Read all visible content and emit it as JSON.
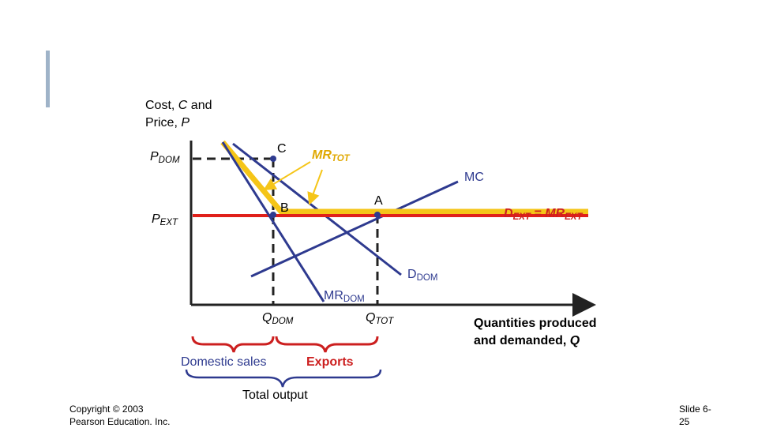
{
  "slide": {
    "copyright_line1": "Copyright © 2003",
    "copyright_line2": "Pearson Education. Inc.",
    "slide_number_line1": "Slide 6-",
    "slide_number_line2": "25"
  },
  "axes": {
    "y_label_line1_prefix": "Cost, ",
    "y_label_line1_var": "C",
    "y_label_line1_suffix": " and",
    "y_label_line2_prefix": "Price, ",
    "y_label_line2_var": "P",
    "x_label_line1": "Quantities produced",
    "x_label_line2_prefix": "and demanded, ",
    "x_label_line2_var": "Q"
  },
  "price_labels": {
    "p_dom_main": "P",
    "p_dom_sub": "DOM",
    "p_ext_main": "P",
    "p_ext_sub": "EXT"
  },
  "quantity_labels": {
    "q_dom_main": "Q",
    "q_dom_sub": "DOM",
    "q_tot_main": "Q",
    "q_tot_sub": "TOT"
  },
  "points": {
    "a": "A",
    "b": "B",
    "c": "C"
  },
  "curves": {
    "mr_tot_main": "MR",
    "mr_tot_sub": "TOT",
    "mc": "MC",
    "d_ext_main1": "D",
    "d_ext_sub1": "EXT",
    "d_ext_eq": " = MR",
    "d_ext_sub2": "EXT",
    "d_dom_main": "D",
    "d_dom_sub": "DOM",
    "mr_dom_main": "MR",
    "mr_dom_sub": "DOM"
  },
  "braces": {
    "domestic_sales": "Domestic sales",
    "exports": "Exports",
    "total_output": "Total output"
  },
  "colors": {
    "navy": "#2e3a8f",
    "red": "#e0201a",
    "yellow": "#f5c518",
    "dark": "#222222",
    "brace_red": "#cc1f1f"
  }
}
